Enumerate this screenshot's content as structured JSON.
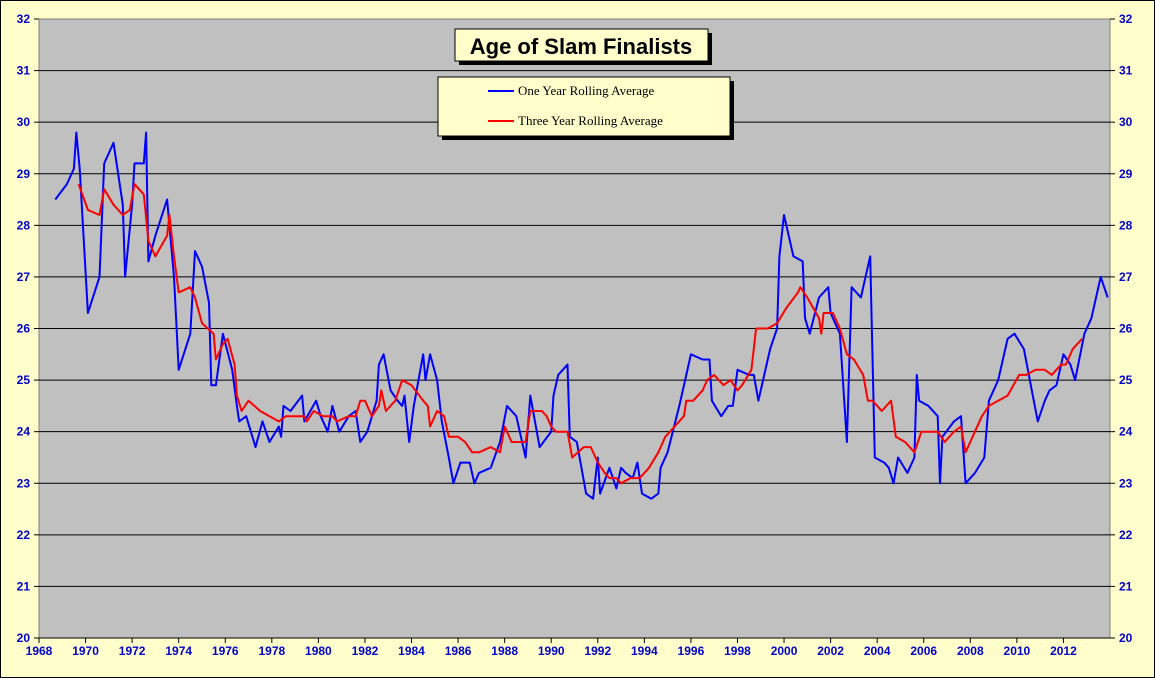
{
  "chart_data": {
    "type": "line",
    "title": "Age of Slam Finalists",
    "xlim": [
      1968,
      2014
    ],
    "ylim": [
      20,
      32
    ],
    "x_ticks": [
      "1968",
      "1970",
      "1972",
      "1974",
      "1976",
      "1978",
      "1980",
      "1982",
      "1984",
      "1986",
      "1988",
      "1990",
      "1992",
      "1994",
      "1996",
      "1998",
      "2000",
      "2002",
      "2004",
      "2006",
      "2008",
      "2010",
      "2012"
    ],
    "y_ticks": [
      "20",
      "21",
      "22",
      "23",
      "24",
      "25",
      "26",
      "27",
      "28",
      "29",
      "30",
      "31",
      "32"
    ],
    "grid": true,
    "legend_position": "top-center",
    "series": [
      {
        "name": "One Year Rolling Average",
        "color": "#0000ff",
        "points": [
          [
            1968.7,
            28.5
          ],
          [
            1969.2,
            28.8
          ],
          [
            1969.5,
            29.1
          ],
          [
            1969.6,
            29.8
          ],
          [
            1969.75,
            29.1
          ],
          [
            1970.1,
            26.3
          ],
          [
            1970.6,
            27.0
          ],
          [
            1970.8,
            29.2
          ],
          [
            1971.2,
            29.6
          ],
          [
            1971.6,
            28.4
          ],
          [
            1971.7,
            27.0
          ],
          [
            1972.0,
            28.4
          ],
          [
            1972.1,
            29.2
          ],
          [
            1972.5,
            29.2
          ],
          [
            1972.6,
            29.8
          ],
          [
            1972.7,
            27.3
          ],
          [
            1973.0,
            27.8
          ],
          [
            1973.5,
            28.5
          ],
          [
            1973.8,
            27.0
          ],
          [
            1974.0,
            25.2
          ],
          [
            1974.5,
            25.9
          ],
          [
            1974.7,
            27.5
          ],
          [
            1975.0,
            27.2
          ],
          [
            1975.3,
            26.5
          ],
          [
            1975.4,
            24.9
          ],
          [
            1975.6,
            24.9
          ],
          [
            1975.9,
            25.9
          ],
          [
            1976.3,
            25.2
          ],
          [
            1976.5,
            24.5
          ],
          [
            1976.6,
            24.2
          ],
          [
            1976.9,
            24.3
          ],
          [
            1977.3,
            23.7
          ],
          [
            1977.6,
            24.2
          ],
          [
            1977.9,
            23.8
          ],
          [
            1978.3,
            24.1
          ],
          [
            1978.4,
            23.9
          ],
          [
            1978.5,
            24.5
          ],
          [
            1978.8,
            24.4
          ],
          [
            1979.3,
            24.7
          ],
          [
            1979.4,
            24.2
          ],
          [
            1979.9,
            24.6
          ],
          [
            1980.1,
            24.3
          ],
          [
            1980.4,
            24.0
          ],
          [
            1980.6,
            24.5
          ],
          [
            1980.9,
            24.0
          ],
          [
            1981.3,
            24.3
          ],
          [
            1981.6,
            24.4
          ],
          [
            1981.8,
            23.8
          ],
          [
            1982.1,
            24.0
          ],
          [
            1982.5,
            24.6
          ],
          [
            1982.6,
            25.3
          ],
          [
            1982.8,
            25.5
          ],
          [
            1983.1,
            24.8
          ],
          [
            1983.4,
            24.6
          ],
          [
            1983.6,
            24.5
          ],
          [
            1983.7,
            24.7
          ],
          [
            1983.9,
            23.8
          ],
          [
            1984.1,
            24.5
          ],
          [
            1984.5,
            25.5
          ],
          [
            1984.6,
            25.0
          ],
          [
            1984.8,
            25.5
          ],
          [
            1985.1,
            25.0
          ],
          [
            1985.3,
            24.2
          ],
          [
            1985.6,
            23.5
          ],
          [
            1985.8,
            23.0
          ],
          [
            1986.1,
            23.4
          ],
          [
            1986.5,
            23.4
          ],
          [
            1986.7,
            23.0
          ],
          [
            1986.9,
            23.2
          ],
          [
            1987.4,
            23.3
          ],
          [
            1987.8,
            23.8
          ],
          [
            1988.1,
            24.5
          ],
          [
            1988.5,
            24.3
          ],
          [
            1988.9,
            23.5
          ],
          [
            1989.1,
            24.7
          ],
          [
            1989.5,
            23.7
          ],
          [
            1990.0,
            24.0
          ],
          [
            1990.1,
            24.7
          ],
          [
            1990.3,
            25.1
          ],
          [
            1990.7,
            25.3
          ],
          [
            1990.8,
            23.9
          ],
          [
            1991.1,
            23.8
          ],
          [
            1991.5,
            22.8
          ],
          [
            1991.8,
            22.7
          ],
          [
            1992.0,
            23.5
          ],
          [
            1992.1,
            22.8
          ],
          [
            1992.5,
            23.3
          ],
          [
            1992.8,
            22.9
          ],
          [
            1993.0,
            23.3
          ],
          [
            1993.2,
            23.2
          ],
          [
            1993.5,
            23.1
          ],
          [
            1993.7,
            23.4
          ],
          [
            1993.9,
            22.8
          ],
          [
            1994.3,
            22.7
          ],
          [
            1994.6,
            22.8
          ],
          [
            1994.7,
            23.3
          ],
          [
            1995.0,
            23.6
          ],
          [
            1995.5,
            24.5
          ],
          [
            1995.8,
            25.1
          ],
          [
            1996.0,
            25.5
          ],
          [
            1996.5,
            25.4
          ],
          [
            1996.8,
            25.4
          ],
          [
            1996.9,
            24.6
          ],
          [
            1997.3,
            24.3
          ],
          [
            1997.6,
            24.5
          ],
          [
            1997.8,
            24.5
          ],
          [
            1998.0,
            25.2
          ],
          [
            1998.5,
            25.1
          ],
          [
            1998.7,
            25.1
          ],
          [
            1998.9,
            24.6
          ],
          [
            1999.4,
            25.6
          ],
          [
            1999.7,
            26.0
          ],
          [
            1999.8,
            27.4
          ],
          [
            2000.0,
            28.2
          ],
          [
            2000.4,
            27.4
          ],
          [
            2000.8,
            27.3
          ],
          [
            2000.9,
            26.2
          ],
          [
            2001.1,
            25.9
          ],
          [
            2001.5,
            26.6
          ],
          [
            2001.9,
            26.8
          ],
          [
            2002.0,
            26.3
          ],
          [
            2002.4,
            25.9
          ],
          [
            2002.7,
            23.8
          ],
          [
            2002.9,
            26.8
          ],
          [
            2003.3,
            26.6
          ],
          [
            2003.7,
            27.4
          ],
          [
            2003.9,
            23.5
          ],
          [
            2004.3,
            23.4
          ],
          [
            2004.5,
            23.3
          ],
          [
            2004.7,
            23.0
          ],
          [
            2004.9,
            23.5
          ],
          [
            2005.3,
            23.2
          ],
          [
            2005.6,
            23.5
          ],
          [
            2005.7,
            25.1
          ],
          [
            2005.8,
            24.6
          ],
          [
            2006.2,
            24.5
          ],
          [
            2006.6,
            24.3
          ],
          [
            2006.7,
            23.0
          ],
          [
            2006.8,
            23.9
          ],
          [
            2007.3,
            24.2
          ],
          [
            2007.6,
            24.3
          ],
          [
            2007.8,
            23.0
          ],
          [
            2008.2,
            23.2
          ],
          [
            2008.6,
            23.5
          ],
          [
            2008.8,
            24.6
          ],
          [
            2009.2,
            25.0
          ],
          [
            2009.6,
            25.8
          ],
          [
            2009.9,
            25.9
          ],
          [
            2010.3,
            25.6
          ],
          [
            2010.6,
            24.9
          ],
          [
            2010.9,
            24.2
          ],
          [
            2011.2,
            24.6
          ],
          [
            2011.4,
            24.8
          ],
          [
            2011.7,
            24.9
          ],
          [
            2012.0,
            25.5
          ],
          [
            2012.3,
            25.3
          ],
          [
            2012.5,
            25.0
          ],
          [
            2012.9,
            25.9
          ],
          [
            2013.2,
            26.2
          ],
          [
            2013.6,
            27.0
          ],
          [
            2013.9,
            26.6
          ]
        ]
      },
      {
        "name": "Three Year Rolling Average",
        "color": "#ff0000",
        "points": [
          [
            1969.7,
            28.8
          ],
          [
            1970.1,
            28.3
          ],
          [
            1970.6,
            28.2
          ],
          [
            1970.8,
            28.7
          ],
          [
            1971.2,
            28.4
          ],
          [
            1971.6,
            28.2
          ],
          [
            1971.9,
            28.3
          ],
          [
            1972.1,
            28.8
          ],
          [
            1972.5,
            28.6
          ],
          [
            1972.7,
            27.7
          ],
          [
            1973.0,
            27.4
          ],
          [
            1973.5,
            27.8
          ],
          [
            1973.6,
            28.2
          ],
          [
            1973.8,
            27.4
          ],
          [
            1974.0,
            26.7
          ],
          [
            1974.5,
            26.8
          ],
          [
            1974.7,
            26.6
          ],
          [
            1975.0,
            26.1
          ],
          [
            1975.5,
            25.9
          ],
          [
            1975.6,
            25.4
          ],
          [
            1975.9,
            25.7
          ],
          [
            1976.1,
            25.8
          ],
          [
            1976.4,
            25.3
          ],
          [
            1976.5,
            24.7
          ],
          [
            1976.7,
            24.4
          ],
          [
            1977.0,
            24.6
          ],
          [
            1977.5,
            24.4
          ],
          [
            1977.9,
            24.3
          ],
          [
            1978.3,
            24.2
          ],
          [
            1978.6,
            24.3
          ],
          [
            1979.0,
            24.3
          ],
          [
            1979.4,
            24.3
          ],
          [
            1979.5,
            24.2
          ],
          [
            1979.8,
            24.4
          ],
          [
            1980.2,
            24.3
          ],
          [
            1980.6,
            24.3
          ],
          [
            1980.8,
            24.2
          ],
          [
            1981.3,
            24.3
          ],
          [
            1981.6,
            24.3
          ],
          [
            1981.8,
            24.6
          ],
          [
            1982.0,
            24.6
          ],
          [
            1982.3,
            24.3
          ],
          [
            1982.6,
            24.5
          ],
          [
            1982.7,
            24.8
          ],
          [
            1982.9,
            24.4
          ],
          [
            1983.3,
            24.6
          ],
          [
            1983.6,
            25.0
          ],
          [
            1984.0,
            24.9
          ],
          [
            1984.5,
            24.6
          ],
          [
            1984.7,
            24.5
          ],
          [
            1984.8,
            24.1
          ],
          [
            1985.1,
            24.4
          ],
          [
            1985.4,
            24.3
          ],
          [
            1985.6,
            23.9
          ],
          [
            1986.0,
            23.9
          ],
          [
            1986.3,
            23.8
          ],
          [
            1986.6,
            23.6
          ],
          [
            1986.9,
            23.6
          ],
          [
            1987.4,
            23.7
          ],
          [
            1987.8,
            23.6
          ],
          [
            1988.0,
            24.1
          ],
          [
            1988.3,
            23.8
          ],
          [
            1988.9,
            23.8
          ],
          [
            1989.1,
            24.4
          ],
          [
            1989.6,
            24.4
          ],
          [
            1989.8,
            24.3
          ],
          [
            1990.0,
            24.1
          ],
          [
            1990.2,
            24.0
          ],
          [
            1990.5,
            24.0
          ],
          [
            1990.7,
            24.0
          ],
          [
            1990.9,
            23.5
          ],
          [
            1991.4,
            23.7
          ],
          [
            1991.7,
            23.7
          ],
          [
            1992.0,
            23.4
          ],
          [
            1992.3,
            23.2
          ],
          [
            1992.5,
            23.1
          ],
          [
            1992.8,
            23.1
          ],
          [
            1993.0,
            23.0
          ],
          [
            1993.4,
            23.1
          ],
          [
            1993.8,
            23.1
          ],
          [
            1994.2,
            23.3
          ],
          [
            1994.6,
            23.6
          ],
          [
            1994.9,
            23.9
          ],
          [
            1995.3,
            24.1
          ],
          [
            1995.7,
            24.3
          ],
          [
            1995.8,
            24.6
          ],
          [
            1996.1,
            24.6
          ],
          [
            1996.5,
            24.8
          ],
          [
            1996.7,
            25.0
          ],
          [
            1997.0,
            25.1
          ],
          [
            1997.4,
            24.9
          ],
          [
            1997.7,
            25.0
          ],
          [
            1998.0,
            24.8
          ],
          [
            1998.2,
            24.9
          ],
          [
            1998.6,
            25.2
          ],
          [
            1998.8,
            26.0
          ],
          [
            1999.3,
            26.0
          ],
          [
            1999.7,
            26.1
          ],
          [
            2000.1,
            26.4
          ],
          [
            2000.6,
            26.7
          ],
          [
            2000.7,
            26.8
          ],
          [
            2001.0,
            26.6
          ],
          [
            2001.5,
            26.2
          ],
          [
            2001.6,
            25.9
          ],
          [
            2001.7,
            26.3
          ],
          [
            2002.1,
            26.3
          ],
          [
            2002.4,
            26.0
          ],
          [
            2002.7,
            25.5
          ],
          [
            2003.0,
            25.4
          ],
          [
            2003.4,
            25.1
          ],
          [
            2003.6,
            24.6
          ],
          [
            2003.8,
            24.6
          ],
          [
            2004.2,
            24.4
          ],
          [
            2004.6,
            24.6
          ],
          [
            2004.8,
            23.9
          ],
          [
            2005.2,
            23.8
          ],
          [
            2005.6,
            23.6
          ],
          [
            2005.9,
            24.0
          ],
          [
            2006.3,
            24.0
          ],
          [
            2006.6,
            24.0
          ],
          [
            2006.9,
            23.8
          ],
          [
            2007.3,
            24.0
          ],
          [
            2007.6,
            24.1
          ],
          [
            2007.8,
            23.6
          ],
          [
            2008.1,
            23.9
          ],
          [
            2008.5,
            24.3
          ],
          [
            2008.8,
            24.5
          ],
          [
            2009.2,
            24.6
          ],
          [
            2009.6,
            24.7
          ],
          [
            2010.1,
            25.1
          ],
          [
            2010.4,
            25.1
          ],
          [
            2010.8,
            25.2
          ],
          [
            2011.2,
            25.2
          ],
          [
            2011.5,
            25.1
          ],
          [
            2011.9,
            25.3
          ],
          [
            2012.1,
            25.3
          ],
          [
            2012.4,
            25.6
          ],
          [
            2012.8,
            25.8
          ]
        ]
      }
    ]
  }
}
